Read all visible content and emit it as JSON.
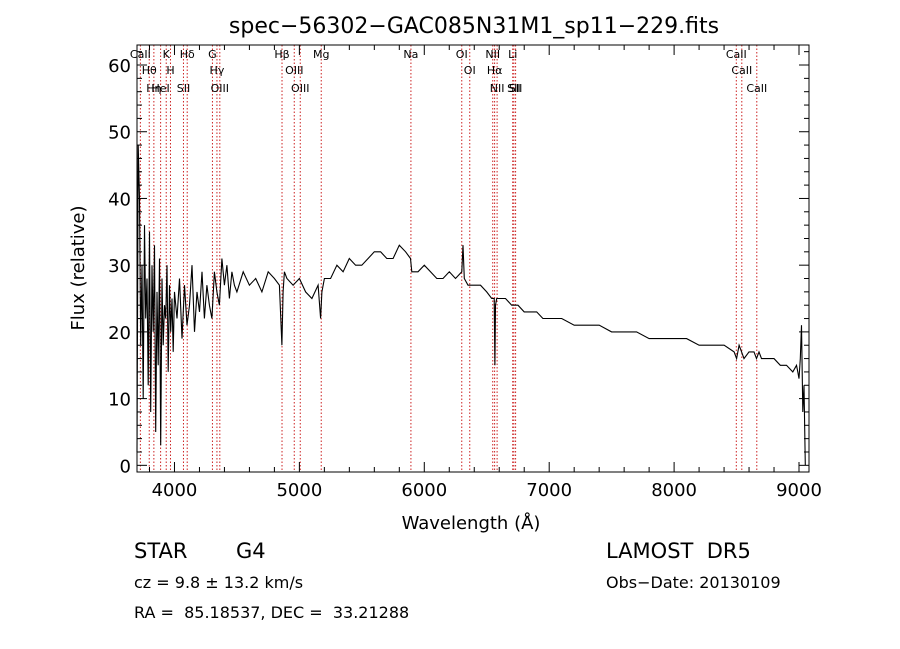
{
  "chart_data": {
    "type": "line",
    "title": "spec−56302−GAC085N31M1_sp11−229.fits",
    "xlabel": "Wavelength (Å)",
    "ylabel": "Flux (relative)",
    "xlim": [
      3700,
      9080
    ],
    "ylim": [
      -1,
      63
    ],
    "xticks": [
      4000,
      5000,
      6000,
      7000,
      8000,
      9000
    ],
    "yticks": [
      0,
      10,
      20,
      30,
      40,
      50,
      60
    ],
    "grid": false,
    "series": [
      {
        "x": [
          3700,
          3710,
          3720,
          3730,
          3740,
          3750,
          3760,
          3770,
          3780,
          3790,
          3800,
          3810,
          3820,
          3830,
          3840,
          3850,
          3860,
          3870,
          3880,
          3890,
          3900,
          3910,
          3920,
          3930,
          3940,
          3950,
          3960,
          3970,
          3980,
          3990,
          4000,
          4020,
          4040,
          4060,
          4080,
          4100,
          4120,
          4140,
          4160,
          4180,
          4200,
          4220,
          4240,
          4260,
          4280,
          4300,
          4320,
          4340,
          4360,
          4380,
          4400,
          4420,
          4440,
          4460,
          4480,
          4500,
          4550,
          4600,
          4650,
          4700,
          4750,
          4800,
          4840,
          4860,
          4870,
          4880,
          4900,
          4950,
          5000,
          5050,
          5100,
          5150,
          5170,
          5180,
          5200,
          5250,
          5300,
          5350,
          5400,
          5450,
          5500,
          5550,
          5600,
          5650,
          5700,
          5750,
          5800,
          5850,
          5890,
          5900,
          5950,
          6000,
          6050,
          6100,
          6150,
          6200,
          6250,
          6300,
          6310,
          6320,
          6350,
          6400,
          6450,
          6500,
          6540,
          6560,
          6565,
          6570,
          6580,
          6600,
          6650,
          6700,
          6750,
          6800,
          6850,
          6900,
          6950,
          7000,
          7100,
          7200,
          7300,
          7400,
          7500,
          7600,
          7700,
          7800,
          7900,
          8000,
          8100,
          8200,
          8300,
          8400,
          8480,
          8500,
          8520,
          8540,
          8560,
          8600,
          8640,
          8660,
          8680,
          8700,
          8750,
          8800,
          8850,
          8900,
          8950,
          8980,
          8990,
          9000,
          9010,
          9020,
          9030,
          9040,
          9050
        ],
        "values": [
          2,
          48,
          40,
          18,
          30,
          10,
          36,
          22,
          28,
          12,
          35,
          8,
          30,
          20,
          33,
          5,
          26,
          15,
          31,
          3,
          28,
          18,
          24,
          22,
          30,
          14,
          27,
          20,
          25,
          17,
          26,
          22,
          28,
          19,
          27,
          21,
          24,
          30,
          20,
          26,
          23,
          29,
          22,
          27,
          24,
          22,
          29,
          26,
          24,
          31,
          27,
          30,
          25,
          29,
          27,
          26,
          29,
          27,
          28,
          26,
          29,
          28,
          27,
          18,
          26,
          29,
          28,
          27,
          28,
          26,
          25,
          27,
          22,
          26,
          28,
          28,
          30,
          29,
          31,
          30,
          30,
          31,
          32,
          32,
          31,
          31,
          33,
          32,
          31,
          29,
          29,
          30,
          29,
          28,
          28,
          29,
          28,
          29,
          33,
          28,
          27,
          27,
          27,
          26,
          25,
          25,
          15,
          24,
          25,
          25,
          25,
          24,
          24,
          23,
          23,
          23,
          22,
          22,
          22,
          21,
          21,
          21,
          20,
          20,
          20,
          19,
          19,
          19,
          19,
          18,
          18,
          18,
          17,
          16,
          18,
          17,
          16,
          17,
          17,
          16,
          17,
          16,
          16,
          16,
          15,
          15,
          14,
          15,
          14,
          13,
          16,
          21,
          8,
          12,
          0
        ]
      }
    ],
    "lines": [
      {
        "name": "Hθ",
        "x": 3798
      },
      {
        "name": "CaII",
        "x": 3727
      },
      {
        "name": "K",
        "x": 3934
      },
      {
        "name": "H",
        "x": 3968
      },
      {
        "name": "HeI",
        "x": 3889
      },
      {
        "name": "Hη",
        "x": 3835
      },
      {
        "name": "Hδ",
        "x": 4102
      },
      {
        "name": "SII",
        "x": 4072
      },
      {
        "name": "OIII",
        "x": 4363
      },
      {
        "name": "Hγ",
        "x": 4340
      },
      {
        "name": "G",
        "x": 4304
      },
      {
        "name": "OIII",
        "x": 4959
      },
      {
        "name": "OIII",
        "x": 5007
      },
      {
        "name": "Hβ",
        "x": 4861
      },
      {
        "name": "Mg",
        "x": 5175
      },
      {
        "name": "Na",
        "x": 5893
      },
      {
        "name": "OI",
        "x": 6300
      },
      {
        "name": "OI",
        "x": 6364
      },
      {
        "name": "Hα",
        "x": 6563
      },
      {
        "name": "NII",
        "x": 6548
      },
      {
        "name": "NII",
        "x": 6583
      },
      {
        "name": "SII",
        "x": 6717
      },
      {
        "name": "SII",
        "x": 6731
      },
      {
        "name": "Li",
        "x": 6708
      },
      {
        "name": "CaII",
        "x": 8498
      },
      {
        "name": "CaII",
        "x": 8542
      },
      {
        "name": "CaII",
        "x": 8662
      }
    ],
    "line_colors": {
      "spectrum": "#000000",
      "marker": "#cc2222"
    }
  },
  "info": {
    "object_class": "STAR",
    "subclass": "G4",
    "survey": "LAMOST  DR5",
    "cz": "cz = 9.8 ± 13.2 km/s",
    "obs_date": "Obs−Date: 20130109",
    "coords": "RA =  85.18537, DEC =  33.21288"
  }
}
